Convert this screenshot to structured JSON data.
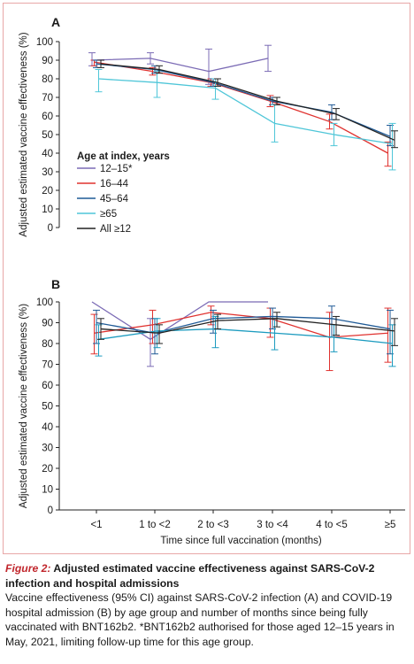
{
  "chart_data": [
    {
      "panel": "A",
      "type": "line",
      "ylabel": "Adjusted estimated vaccine effectiveness (%)",
      "ylim": [
        0,
        100
      ],
      "yticks": [
        0,
        10,
        20,
        30,
        40,
        50,
        60,
        70,
        80,
        90,
        100
      ],
      "categories": [
        "<1",
        "1 to <2",
        "2 to <3",
        "3 to <4",
        "4 to <5",
        "≥5"
      ],
      "legend_title": "Age at index, years",
      "legend_position": "center-left",
      "series": [
        {
          "name": "12–15*",
          "color": "#7b6bb5",
          "values": [
            90,
            91,
            84,
            91,
            null,
            null
          ],
          "lower": [
            87,
            88,
            77,
            84,
            null,
            null
          ],
          "upper": [
            94,
            94,
            96,
            98,
            null,
            null
          ]
        },
        {
          "name": "16–44",
          "color": "#e0322f",
          "values": [
            89,
            84,
            78,
            68,
            57,
            40
          ],
          "lower": [
            87,
            82,
            76,
            65,
            53,
            33
          ],
          "upper": [
            90,
            86,
            80,
            71,
            61,
            46
          ]
        },
        {
          "name": "45–64",
          "color": "#1f5a96",
          "values": [
            88,
            85,
            78,
            68,
            62,
            49
          ],
          "lower": [
            86,
            83,
            76,
            66,
            58,
            44
          ],
          "upper": [
            90,
            87,
            80,
            70,
            66,
            55
          ]
        },
        {
          "name": "≥65",
          "color": "#4fc6d8",
          "values": [
            80,
            78,
            75,
            56,
            50,
            45
          ],
          "lower": [
            73,
            70,
            69,
            46,
            44,
            31
          ],
          "upper": [
            85,
            84,
            80,
            66,
            56,
            56
          ]
        },
        {
          "name": "All ≥12",
          "color": "#222222",
          "values": [
            88,
            85,
            78,
            68,
            61,
            47
          ],
          "lower": [
            86,
            83,
            76,
            66,
            58,
            43
          ],
          "upper": [
            90,
            87,
            80,
            70,
            64,
            52
          ]
        }
      ]
    },
    {
      "panel": "B",
      "type": "line",
      "xlabel": "Time since full vaccination (months)",
      "ylabel": "Adjusted estimated vaccine effectiveness (%)",
      "ylim": [
        0,
        100
      ],
      "yticks": [
        0,
        10,
        20,
        30,
        40,
        50,
        60,
        70,
        80,
        90,
        100
      ],
      "categories": [
        "<1",
        "1 to <2",
        "2 to <3",
        "3 to <4",
        "4 to <5",
        "≥5"
      ],
      "series": [
        {
          "name": "12–15*",
          "color": "#7b6bb5",
          "values": [
            100,
            82,
            100,
            100,
            null,
            null
          ],
          "lower": [
            null,
            69,
            null,
            null,
            null,
            null
          ],
          "upper": [
            null,
            92,
            null,
            null,
            null,
            null
          ]
        },
        {
          "name": "16–44",
          "color": "#e0322f",
          "values": [
            85,
            89,
            95,
            92,
            83,
            85
          ],
          "lower": [
            75,
            80,
            89,
            83,
            67,
            71
          ],
          "upper": [
            94,
            96,
            98,
            97,
            95,
            97
          ]
        },
        {
          "name": "45–64",
          "color": "#1f5a96",
          "values": [
            90,
            85,
            92,
            93,
            92,
            87
          ],
          "lower": [
            80,
            75,
            85,
            87,
            83,
            75
          ],
          "upper": [
            96,
            92,
            96,
            97,
            98,
            96
          ]
        },
        {
          "name": "≥65",
          "color": "#1c9bbf",
          "values": [
            82,
            86,
            87,
            85,
            83,
            80
          ],
          "lower": [
            74,
            78,
            78,
            77,
            76,
            69
          ],
          "upper": [
            89,
            92,
            93,
            92,
            89,
            89
          ]
        },
        {
          "name": "All ≥12",
          "color": "#222222",
          "values": [
            87,
            85,
            91,
            92,
            89,
            86
          ],
          "lower": [
            82,
            80,
            87,
            88,
            84,
            79
          ],
          "upper": [
            92,
            89,
            94,
            95,
            93,
            92
          ]
        }
      ]
    }
  ],
  "caption": {
    "figure_label": "Figure 2:",
    "title": " Adjusted estimated vaccine effectiveness against SARS-CoV-2 infection and hospital admissions",
    "body": "Vaccine effectiveness (95% CI) against SARS-CoV-2 infection (A) and COVID-19 hospital admission (B) by age group and number of months since being fully vaccinated with BNT162b2. *BNT162b2 authorised for those aged 12–15 years in May, 2021, limiting follow-up time for this age group."
  }
}
